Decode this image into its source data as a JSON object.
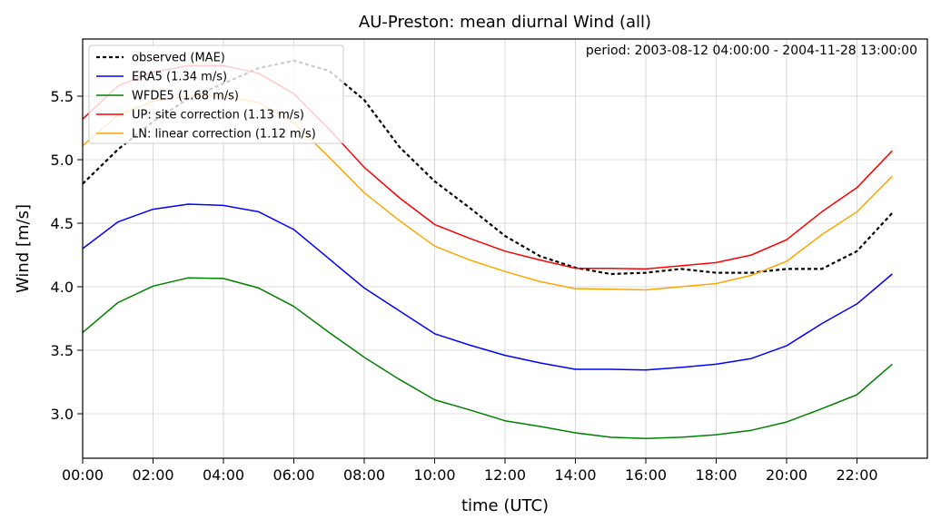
{
  "chart_data": {
    "type": "line",
    "title": "AU-Preston: mean diurnal Wind (all)",
    "annotation": "period: 2003-08-12 04:00:00 - 2004-11-28 13:00:00",
    "xlabel": "time (UTC)",
    "ylabel": "Wind [m/s]",
    "xlim": [
      0,
      24
    ],
    "ylim": [
      2.65,
      5.95
    ],
    "x_ticks": [
      0,
      2,
      4,
      6,
      8,
      10,
      12,
      14,
      16,
      18,
      20,
      22
    ],
    "x_tick_labels": [
      "00:00",
      "02:00",
      "04:00",
      "06:00",
      "08:00",
      "10:00",
      "12:00",
      "14:00",
      "16:00",
      "18:00",
      "20:00",
      "22:00"
    ],
    "y_ticks": [
      3.0,
      3.5,
      4.0,
      4.5,
      5.0,
      5.5
    ],
    "y_tick_labels": [
      "3.0",
      "3.5",
      "4.0",
      "4.5",
      "5.0",
      "5.5"
    ],
    "grid": true,
    "legend_position": "top-left",
    "x": [
      0,
      1,
      2,
      3,
      4,
      5,
      6,
      7,
      8,
      9,
      10,
      11,
      12,
      13,
      14,
      15,
      16,
      17,
      18,
      19,
      20,
      21,
      22,
      23
    ],
    "series": [
      {
        "name": "observed (MAE)",
        "color": "#000000",
        "dashed": true,
        "values": [
          4.81,
          5.08,
          5.3,
          5.48,
          5.6,
          5.72,
          5.78,
          5.7,
          5.47,
          5.1,
          4.83,
          4.62,
          4.4,
          4.24,
          4.15,
          4.1,
          4.11,
          4.14,
          4.11,
          4.11,
          4.14,
          4.14,
          4.28,
          4.58
        ]
      },
      {
        "name": "ERA5 (1.34 m/s)",
        "color": "#0000ff",
        "dashed": false,
        "values": [
          4.3,
          4.51,
          4.61,
          4.65,
          4.64,
          4.59,
          4.45,
          4.22,
          3.99,
          3.81,
          3.63,
          3.54,
          3.46,
          3.4,
          3.35,
          3.35,
          3.345,
          3.365,
          3.39,
          3.435,
          3.535,
          3.71,
          3.865,
          4.1
        ]
      },
      {
        "name": "WFDE5 (1.68 m/s)",
        "color": "#008000",
        "dashed": false,
        "values": [
          3.64,
          3.875,
          4.005,
          4.07,
          4.065,
          3.99,
          3.845,
          3.64,
          3.445,
          3.27,
          3.11,
          3.03,
          2.945,
          2.9,
          2.85,
          2.815,
          2.805,
          2.815,
          2.835,
          2.87,
          2.935,
          3.04,
          3.15,
          3.39
        ]
      },
      {
        "name": "UP: site correction (1.13 m/s)",
        "color": "#ff0000",
        "dashed": false,
        "values": [
          5.32,
          5.58,
          5.69,
          5.74,
          5.74,
          5.68,
          5.52,
          5.24,
          4.94,
          4.7,
          4.49,
          4.38,
          4.28,
          4.21,
          4.145,
          4.145,
          4.14,
          4.165,
          4.19,
          4.25,
          4.37,
          4.59,
          4.78,
          5.07
        ]
      },
      {
        "name": "LN: linear correction (1.12 m/s)",
        "color": "#ffa500",
        "dashed": false,
        "values": [
          5.11,
          5.35,
          5.46,
          5.5,
          5.5,
          5.45,
          5.29,
          5.02,
          4.74,
          4.52,
          4.32,
          4.21,
          4.12,
          4.04,
          3.985,
          3.98,
          3.975,
          4.0,
          4.025,
          4.09,
          4.2,
          4.41,
          4.59,
          4.87
        ]
      }
    ]
  }
}
